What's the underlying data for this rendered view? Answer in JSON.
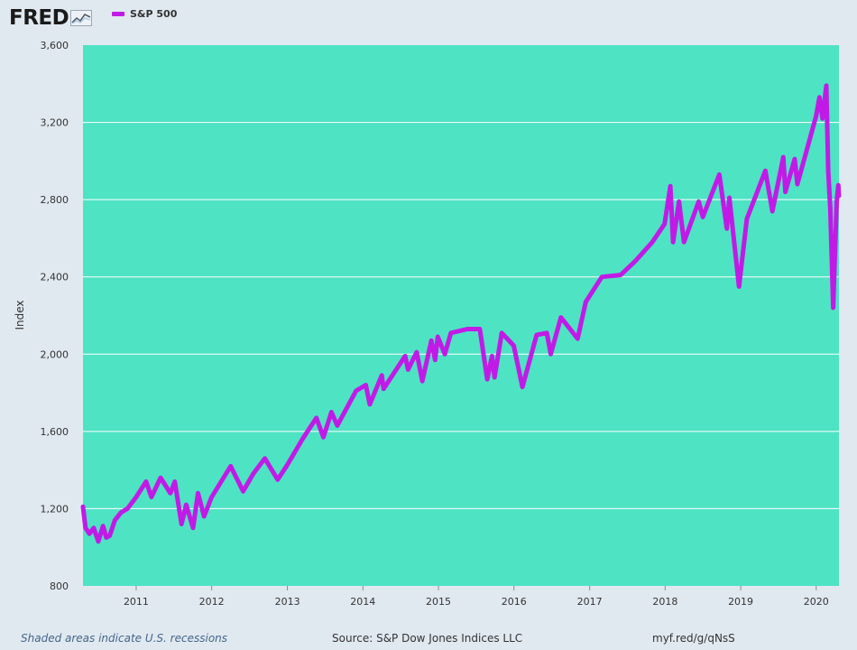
{
  "header": {
    "logo_text": "FRED",
    "logo_icon": "trend-chart-icon"
  },
  "colors": {
    "page_background": "#e1e9f0",
    "plot_background": "#4ee3c3",
    "series": "#c21ae6",
    "gridline": "#ffffff"
  },
  "footer": {
    "recession_note": "Shaded areas indicate U.S. recessions",
    "source": "Source: S&P Dow Jones Indices LLC",
    "link": "myf.red/g/qNsS"
  },
  "chart_data": {
    "type": "line",
    "ylabel": "Index",
    "ylim": [
      800,
      3600
    ],
    "xlim": [
      "2010-04-19",
      "2020-04-20"
    ],
    "grid": true,
    "legend": "top-left",
    "y_ticks": [
      "800",
      "1,200",
      "1,600",
      "2,000",
      "2,400",
      "2,800",
      "3,200",
      "3,600"
    ],
    "y_tick_values": [
      800,
      1200,
      1600,
      2000,
      2400,
      2800,
      3200,
      3600
    ],
    "x_ticks": [
      "2011",
      "2012",
      "2013",
      "2014",
      "2015",
      "2016",
      "2017",
      "2018",
      "2019",
      "2020"
    ],
    "x_tick_values": [
      "2011-01-01",
      "2012-01-01",
      "2013-01-01",
      "2014-01-01",
      "2015-01-01",
      "2016-01-01",
      "2017-01-01",
      "2018-01-01",
      "2019-01-01",
      "2020-01-01"
    ],
    "series": [
      {
        "name": "S&P 500",
        "x": [
          "2010-04-19",
          "2010-05-01",
          "2010-05-20",
          "2010-06-10",
          "2010-07-02",
          "2010-07-25",
          "2010-08-10",
          "2010-08-26",
          "2010-09-20",
          "2010-10-20",
          "2010-11-20",
          "2010-12-31",
          "2011-02-18",
          "2011-03-16",
          "2011-04-29",
          "2011-06-15",
          "2011-07-07",
          "2011-08-08",
          "2011-08-31",
          "2011-10-03",
          "2011-10-27",
          "2011-11-25",
          "2011-12-31",
          "2012-04-02",
          "2012-06-01",
          "2012-07-20",
          "2012-09-14",
          "2012-11-15",
          "2012-12-31",
          "2013-03-15",
          "2013-05-21",
          "2013-06-24",
          "2013-08-02",
          "2013-08-30",
          "2013-11-29",
          "2014-01-15",
          "2014-02-03",
          "2014-04-02",
          "2014-04-11",
          "2014-07-24",
          "2014-08-07",
          "2014-09-18",
          "2014-10-15",
          "2014-11-28",
          "2014-12-16",
          "2014-12-29",
          "2015-02-01",
          "2015-03-02",
          "2015-05-21",
          "2015-07-20",
          "2015-08-25",
          "2015-09-17",
          "2015-09-29",
          "2015-11-03",
          "2015-12-31",
          "2016-02-11",
          "2016-04-20",
          "2016-06-08",
          "2016-06-27",
          "2016-08-15",
          "2016-11-04",
          "2016-12-13",
          "2017-03-01",
          "2017-05-31",
          "2017-08-08",
          "2017-10-31",
          "2017-12-29",
          "2018-01-26",
          "2018-02-08",
          "2018-03-09",
          "2018-04-02",
          "2018-06-12",
          "2018-07-02",
          "2018-09-20",
          "2018-10-26",
          "2018-11-07",
          "2018-12-24",
          "2019-01-31",
          "2019-04-30",
          "2019-06-03",
          "2019-07-26",
          "2019-08-05",
          "2019-09-19",
          "2019-10-02",
          "2019-12-31",
          "2020-01-17",
          "2020-01-31",
          "2020-02-19",
          "2020-02-28",
          "2020-03-09",
          "2020-03-23",
          "2020-04-09",
          "2020-04-17",
          "2020-04-20"
        ],
        "values": [
          1210,
          1100,
          1070,
          1100,
          1030,
          1110,
          1050,
          1060,
          1140,
          1180,
          1200,
          1258,
          1340,
          1260,
          1360,
          1280,
          1340,
          1120,
          1220,
          1100,
          1280,
          1160,
          1258,
          1420,
          1290,
          1380,
          1460,
          1350,
          1426,
          1560,
          1670,
          1570,
          1700,
          1630,
          1810,
          1840,
          1740,
          1890,
          1820,
          1990,
          1920,
          2010,
          1860,
          2070,
          1970,
          2090,
          2000,
          2110,
          2130,
          2130,
          1870,
          1990,
          1880,
          2110,
          2044,
          1830,
          2100,
          2110,
          2000,
          2190,
          2080,
          2270,
          2400,
          2410,
          2480,
          2580,
          2674,
          2870,
          2580,
          2790,
          2580,
          2790,
          2710,
          2930,
          2650,
          2810,
          2350,
          2700,
          2950,
          2740,
          3020,
          2840,
          3010,
          2880,
          3230,
          3330,
          3220,
          3390,
          2950,
          2750,
          2240,
          2790,
          2875,
          2820
        ]
      }
    ]
  }
}
